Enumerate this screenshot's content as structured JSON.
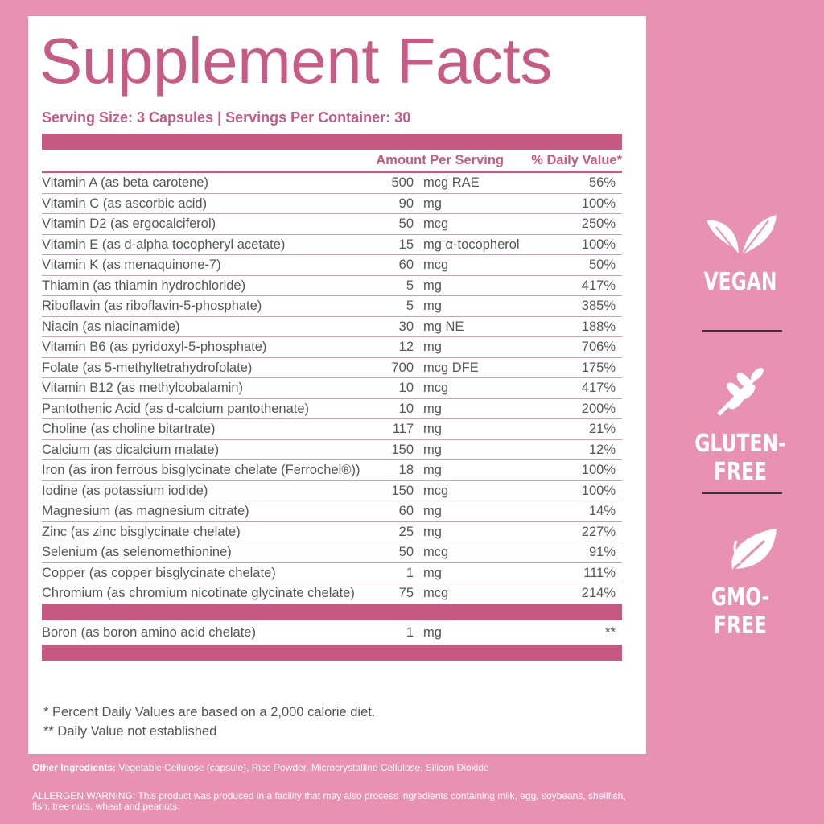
{
  "title": "Supplement Facts",
  "serving": "Serving Size: 3 Capsules | Servings Per Container: 30",
  "columns": {
    "amount": "Amount Per Serving",
    "dv": "% Daily Value*"
  },
  "rows": [
    {
      "name": "Vitamin A (as beta carotene)",
      "amount": 500,
      "unit": "mcg RAE",
      "dv": "56%"
    },
    {
      "name": "Vitamin C (as ascorbic acid)",
      "amount": 90,
      "unit": "mg",
      "dv": "100%"
    },
    {
      "name": "Vitamin D2 (as ergocalciferol)",
      "amount": 50,
      "unit": "mcg",
      "dv": "250%"
    },
    {
      "name": "Vitamin E (as d-alpha tocopheryl acetate)",
      "amount": 15,
      "unit": "mg α-tocopherol",
      "dv": "100%"
    },
    {
      "name": "Vitamin K (as menaquinone-7)",
      "amount": 60,
      "unit": "mcg",
      "dv": "50%"
    },
    {
      "name": "Thiamin (as thiamin hydrochloride)",
      "amount": 5,
      "unit": "mg",
      "dv": "417%"
    },
    {
      "name": "Riboflavin (as riboflavin-5-phosphate)",
      "amount": 5,
      "unit": "mg",
      "dv": "385%"
    },
    {
      "name": "Niacin (as niacinamide)",
      "amount": 30,
      "unit": "mg NE",
      "dv": "188%"
    },
    {
      "name": "Vitamin B6 (as pyridoxyl-5-phosphate)",
      "amount": 12,
      "unit": "mg",
      "dv": "706%"
    },
    {
      "name": "Folate (as 5-methyltetrahydrofolate)",
      "amount": 700,
      "unit": "mcg DFE",
      "dv": "175%"
    },
    {
      "name": "Vitamin B12 (as methylcobalamin)",
      "amount": 10,
      "unit": "mcg",
      "dv": "417%"
    },
    {
      "name": "Pantothenic Acid (as d-calcium pantothenate)",
      "amount": 10,
      "unit": "mg",
      "dv": "200%"
    },
    {
      "name": "Choline (as choline bitartrate)",
      "amount": 117,
      "unit": "mg",
      "dv": "21%"
    },
    {
      "name": "Calcium (as dicalcium malate)",
      "amount": 150,
      "unit": "mg",
      "dv": "12%"
    },
    {
      "name": "Iron (as iron ferrous bisglycinate chelate (Ferrochel®))",
      "amount": 18,
      "unit": "mg",
      "dv": "100%"
    },
    {
      "name": "Iodine (as potassium iodide)",
      "amount": 150,
      "unit": "mcg",
      "dv": "100%"
    },
    {
      "name": "Magnesium (as magnesium citrate)",
      "amount": 60,
      "unit": "mg",
      "dv": "14%"
    },
    {
      "name": "Zinc (as zinc bisglycinate chelate)",
      "amount": 25,
      "unit": "mg",
      "dv": "227%"
    },
    {
      "name": "Selenium (as selenomethionine)",
      "amount": 50,
      "unit": "mcg",
      "dv": "91%"
    },
    {
      "name": "Copper (as copper bisglycinate chelate)",
      "amount": 1,
      "unit": "mg",
      "dv": "111%"
    },
    {
      "name": "Chromium (as chromium nicotinate glycinate chelate)",
      "amount": 75,
      "unit": "mcg",
      "dv": "214%"
    }
  ],
  "extra_rows": [
    {
      "name": "Boron (as boron amino acid chelate)",
      "amount": 1,
      "unit": "mg",
      "dv": "**"
    }
  ],
  "footnotes": [
    "* Percent Daily Values are based on a 2,000 calorie diet.",
    "** Daily Value not established"
  ],
  "other_ingredients": {
    "label": "Other Ingredients:",
    "text": "Vegetable Cellulose (capsule), Rice Powder, Microcrystalline Cellulose, Silicon Dioxide"
  },
  "allergen": "ALLERGEN WARNING: This product was produced in a facility that may also process ingredients containing milk, egg, soybeans, shellfish, fish, tree nuts, wheat and peanuts.",
  "badges": [
    "VEGAN",
    "GLUTEN-FREE",
    "GMO-FREE"
  ]
}
